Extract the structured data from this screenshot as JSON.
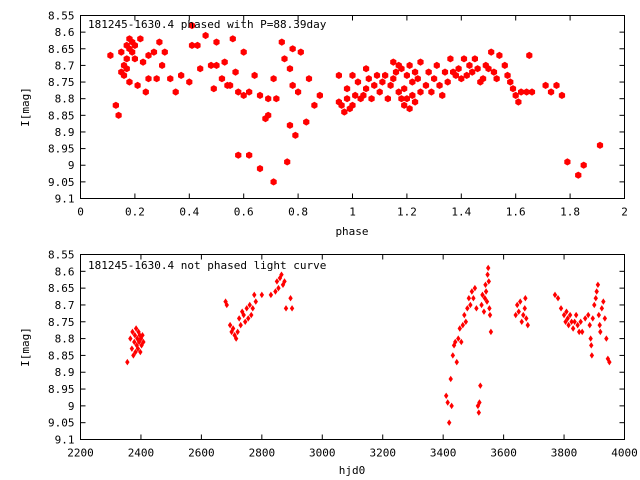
{
  "colors": {
    "points": "#ff0000",
    "axes": "#000000",
    "background": "#ffffff"
  },
  "chart_data": [
    {
      "type": "scatter",
      "title": "181245-1630.4 phased with P=88.39day",
      "xlabel": "phase",
      "ylabel": "I[mag]",
      "xlim": [
        0,
        2
      ],
      "ylim": [
        8.55,
        9.1
      ],
      "y_inverted": true,
      "grid": false,
      "marker": "hexagon",
      "x_ticks": [
        0,
        0.2,
        0.4,
        0.6,
        0.8,
        1,
        1.2,
        1.4,
        1.6,
        1.8,
        2
      ],
      "x_tick_labels": [
        "0",
        "0.2",
        "0.4",
        "0.6",
        "0.8",
        "1",
        "1.2",
        "1.4",
        "1.6",
        "1.8",
        "2"
      ],
      "y_ticks": [
        8.55,
        8.6,
        8.65,
        8.7,
        8.75,
        8.8,
        8.85,
        8.9,
        8.95,
        9,
        9.05,
        9.1
      ],
      "y_tick_labels": [
        "8.55",
        "8.6",
        "8.65",
        "8.7",
        "8.75",
        "8.8",
        "8.85",
        "8.9",
        "8.95",
        "9",
        "9.05",
        "9.1"
      ],
      "points": [
        [
          0.11,
          8.67
        ],
        [
          0.13,
          8.82
        ],
        [
          0.14,
          8.85
        ],
        [
          0.15,
          8.72
        ],
        [
          0.15,
          8.66
        ],
        [
          0.16,
          8.7
        ],
        [
          0.16,
          8.73
        ],
        [
          0.17,
          8.64
        ],
        [
          0.17,
          8.68
        ],
        [
          0.17,
          8.71
        ],
        [
          0.18,
          8.62
        ],
        [
          0.18,
          8.65
        ],
        [
          0.18,
          8.75
        ],
        [
          0.19,
          8.63
        ],
        [
          0.19,
          8.66
        ],
        [
          0.2,
          8.68
        ],
        [
          0.2,
          8.64
        ],
        [
          0.21,
          8.76
        ],
        [
          0.22,
          8.62
        ],
        [
          0.23,
          8.69
        ],
        [
          0.24,
          8.78
        ],
        [
          0.25,
          8.67
        ],
        [
          0.25,
          8.74
        ],
        [
          0.27,
          8.66
        ],
        [
          0.28,
          8.74
        ],
        [
          0.29,
          8.63
        ],
        [
          0.3,
          8.7
        ],
        [
          0.31,
          8.66
        ],
        [
          0.33,
          8.74
        ],
        [
          0.35,
          8.78
        ],
        [
          0.37,
          8.73
        ],
        [
          0.4,
          8.75
        ],
        [
          0.41,
          8.64
        ],
        [
          0.41,
          8.58
        ],
        [
          0.43,
          8.64
        ],
        [
          0.44,
          8.71
        ],
        [
          0.46,
          8.61
        ],
        [
          0.48,
          8.7
        ],
        [
          0.49,
          8.77
        ],
        [
          0.5,
          8.7
        ],
        [
          0.5,
          8.63
        ],
        [
          0.52,
          8.74
        ],
        [
          0.53,
          8.69
        ],
        [
          0.54,
          8.76
        ],
        [
          0.55,
          8.76
        ],
        [
          0.56,
          8.62
        ],
        [
          0.57,
          8.72
        ],
        [
          0.58,
          8.78
        ],
        [
          0.58,
          8.97
        ],
        [
          0.6,
          8.79
        ],
        [
          0.6,
          8.66
        ],
        [
          0.62,
          8.78
        ],
        [
          0.62,
          8.97
        ],
        [
          0.64,
          8.73
        ],
        [
          0.66,
          8.79
        ],
        [
          0.66,
          9.01
        ],
        [
          0.68,
          8.86
        ],
        [
          0.69,
          8.8
        ],
        [
          0.69,
          8.85
        ],
        [
          0.71,
          9.05
        ],
        [
          0.71,
          8.74
        ],
        [
          0.72,
          8.8
        ],
        [
          0.74,
          8.63
        ],
        [
          0.75,
          8.68
        ],
        [
          0.76,
          8.99
        ],
        [
          0.77,
          8.88
        ],
        [
          0.77,
          8.71
        ],
        [
          0.78,
          8.65
        ],
        [
          0.78,
          8.76
        ],
        [
          0.79,
          8.91
        ],
        [
          0.8,
          8.78
        ],
        [
          0.81,
          8.66
        ],
        [
          0.83,
          8.87
        ],
        [
          0.84,
          8.74
        ],
        [
          0.86,
          8.82
        ],
        [
          0.88,
          8.79
        ],
        [
          0.95,
          8.73
        ],
        [
          0.95,
          8.81
        ],
        [
          0.96,
          8.82
        ],
        [
          0.97,
          8.84
        ],
        [
          0.98,
          8.77
        ],
        [
          0.98,
          8.8
        ],
        [
          0.99,
          8.83
        ],
        [
          1.0,
          8.82
        ],
        [
          1.0,
          8.73
        ],
        [
          1.01,
          8.79
        ],
        [
          1.02,
          8.75
        ],
        [
          1.03,
          8.8
        ],
        [
          1.04,
          8.79
        ],
        [
          1.05,
          8.77
        ],
        [
          1.05,
          8.71
        ],
        [
          1.06,
          8.74
        ],
        [
          1.07,
          8.8
        ],
        [
          1.08,
          8.76
        ],
        [
          1.09,
          8.73
        ],
        [
          1.1,
          8.78
        ],
        [
          1.11,
          8.75
        ],
        [
          1.12,
          8.73
        ],
        [
          1.13,
          8.8
        ],
        [
          1.14,
          8.76
        ],
        [
          1.15,
          8.69
        ],
        [
          1.15,
          8.74
        ],
        [
          1.16,
          8.72
        ],
        [
          1.17,
          8.7
        ],
        [
          1.17,
          8.78
        ],
        [
          1.18,
          8.8
        ],
        [
          1.18,
          8.71
        ],
        [
          1.19,
          8.82
        ],
        [
          1.19,
          8.77
        ],
        [
          1.2,
          8.8
        ],
        [
          1.2,
          8.73
        ],
        [
          1.21,
          8.83
        ],
        [
          1.21,
          8.7
        ],
        [
          1.22,
          8.79
        ],
        [
          1.22,
          8.75
        ],
        [
          1.23,
          8.81
        ],
        [
          1.23,
          8.72
        ],
        [
          1.24,
          8.74
        ],
        [
          1.25,
          8.69
        ],
        [
          1.25,
          8.78
        ],
        [
          1.27,
          8.76
        ],
        [
          1.28,
          8.72
        ],
        [
          1.29,
          8.78
        ],
        [
          1.3,
          8.74
        ],
        [
          1.31,
          8.7
        ],
        [
          1.32,
          8.76
        ],
        [
          1.33,
          8.79
        ],
        [
          1.34,
          8.72
        ],
        [
          1.35,
          8.75
        ],
        [
          1.36,
          8.68
        ],
        [
          1.37,
          8.72
        ],
        [
          1.38,
          8.73
        ],
        [
          1.39,
          8.71
        ],
        [
          1.4,
          8.74
        ],
        [
          1.41,
          8.68
        ],
        [
          1.42,
          8.73
        ],
        [
          1.43,
          8.7
        ],
        [
          1.44,
          8.72
        ],
        [
          1.45,
          8.68
        ],
        [
          1.46,
          8.71
        ],
        [
          1.47,
          8.75
        ],
        [
          1.48,
          8.74
        ],
        [
          1.49,
          8.7
        ],
        [
          1.5,
          8.71
        ],
        [
          1.51,
          8.66
        ],
        [
          1.52,
          8.72
        ],
        [
          1.53,
          8.74
        ],
        [
          1.54,
          8.67
        ],
        [
          1.56,
          8.7
        ],
        [
          1.57,
          8.73
        ],
        [
          1.58,
          8.75
        ],
        [
          1.59,
          8.77
        ],
        [
          1.6,
          8.79
        ],
        [
          1.61,
          8.81
        ],
        [
          1.62,
          8.78
        ],
        [
          1.64,
          8.78
        ],
        [
          1.65,
          8.67
        ],
        [
          1.66,
          8.78
        ],
        [
          1.71,
          8.76
        ],
        [
          1.73,
          8.78
        ],
        [
          1.75,
          8.76
        ],
        [
          1.77,
          8.79
        ],
        [
          1.79,
          8.99
        ],
        [
          1.83,
          9.03
        ],
        [
          1.85,
          9.0
        ],
        [
          1.91,
          8.94
        ]
      ]
    },
    {
      "type": "scatter",
      "title": "181245-1630.4 not phased light curve",
      "xlabel": "hjd0",
      "ylabel": "I[mag]",
      "xlim": [
        2200,
        4000
      ],
      "ylim": [
        8.55,
        9.1
      ],
      "y_inverted": true,
      "grid": false,
      "marker": "diamond",
      "x_ticks": [
        2200,
        2400,
        2600,
        2800,
        3000,
        3200,
        3400,
        3600,
        3800,
        4000
      ],
      "x_tick_labels": [
        "2200",
        "2400",
        "2600",
        "2800",
        "3000",
        "3200",
        "3400",
        "3600",
        "3800",
        "4000"
      ],
      "y_ticks": [
        8.55,
        8.6,
        8.65,
        8.7,
        8.75,
        8.8,
        8.85,
        8.9,
        8.95,
        9,
        9.05,
        9.1
      ],
      "y_tick_labels": [
        "8.55",
        "8.6",
        "8.65",
        "8.7",
        "8.75",
        "8.8",
        "8.85",
        "8.9",
        "8.95",
        "9",
        "9.05",
        "9.1"
      ],
      "points": [
        [
          2355,
          8.87
        ],
        [
          2365,
          8.8
        ],
        [
          2370,
          8.83
        ],
        [
          2372,
          8.78
        ],
        [
          2375,
          8.85
        ],
        [
          2378,
          8.81
        ],
        [
          2380,
          8.79
        ],
        [
          2382,
          8.84
        ],
        [
          2384,
          8.77
        ],
        [
          2386,
          8.82
        ],
        [
          2388,
          8.8
        ],
        [
          2390,
          8.83
        ],
        [
          2392,
          8.78
        ],
        [
          2394,
          8.81
        ],
        [
          2396,
          8.79
        ],
        [
          2398,
          8.84
        ],
        [
          2400,
          8.8
        ],
        [
          2402,
          8.82
        ],
        [
          2405,
          8.79
        ],
        [
          2408,
          8.81
        ],
        [
          2680,
          8.69
        ],
        [
          2684,
          8.7
        ],
        [
          2695,
          8.76
        ],
        [
          2700,
          8.78
        ],
        [
          2705,
          8.77
        ],
        [
          2710,
          8.79
        ],
        [
          2715,
          8.8
        ],
        [
          2720,
          8.78
        ],
        [
          2725,
          8.74
        ],
        [
          2730,
          8.76
        ],
        [
          2735,
          8.72
        ],
        [
          2740,
          8.73
        ],
        [
          2745,
          8.75
        ],
        [
          2750,
          8.71
        ],
        [
          2755,
          8.74
        ],
        [
          2760,
          8.7
        ],
        [
          2765,
          8.73
        ],
        [
          2770,
          8.71
        ],
        [
          2775,
          8.67
        ],
        [
          2780,
          8.69
        ],
        [
          2800,
          8.67
        ],
        [
          2830,
          8.67
        ],
        [
          2845,
          8.66
        ],
        [
          2850,
          8.63
        ],
        [
          2855,
          8.65
        ],
        [
          2860,
          8.62
        ],
        [
          2865,
          8.61
        ],
        [
          2870,
          8.64
        ],
        [
          2875,
          8.63
        ],
        [
          2880,
          8.71
        ],
        [
          2895,
          8.68
        ],
        [
          2900,
          8.71
        ],
        [
          3410,
          8.97
        ],
        [
          3415,
          8.99
        ],
        [
          3420,
          9.05
        ],
        [
          3425,
          8.92
        ],
        [
          3428,
          9.0
        ],
        [
          3432,
          8.85
        ],
        [
          3436,
          8.82
        ],
        [
          3440,
          8.81
        ],
        [
          3445,
          8.87
        ],
        [
          3450,
          8.8
        ],
        [
          3455,
          8.77
        ],
        [
          3460,
          8.81
        ],
        [
          3465,
          8.76
        ],
        [
          3470,
          8.73
        ],
        [
          3475,
          8.75
        ],
        [
          3480,
          8.71
        ],
        [
          3485,
          8.68
        ],
        [
          3490,
          8.7
        ],
        [
          3495,
          8.66
        ],
        [
          3500,
          8.68
        ],
        [
          3505,
          8.65
        ],
        [
          3510,
          8.71
        ],
        [
          3515,
          9.0
        ],
        [
          3518,
          9.02
        ],
        [
          3520,
          8.99
        ],
        [
          3523,
          8.94
        ],
        [
          3527,
          8.7
        ],
        [
          3530,
          8.67
        ],
        [
          3535,
          8.72
        ],
        [
          3538,
          8.68
        ],
        [
          3540,
          8.64
        ],
        [
          3542,
          8.66
        ],
        [
          3545,
          8.69
        ],
        [
          3547,
          8.61
        ],
        [
          3549,
          8.59
        ],
        [
          3551,
          8.63
        ],
        [
          3553,
          8.71
        ],
        [
          3555,
          8.73
        ],
        [
          3558,
          8.78
        ],
        [
          3640,
          8.73
        ],
        [
          3645,
          8.7
        ],
        [
          3650,
          8.72
        ],
        [
          3655,
          8.69
        ],
        [
          3660,
          8.75
        ],
        [
          3665,
          8.73
        ],
        [
          3670,
          8.71
        ],
        [
          3672,
          8.68
        ],
        [
          3675,
          8.74
        ],
        [
          3680,
          8.76
        ],
        [
          3770,
          8.67
        ],
        [
          3780,
          8.68
        ],
        [
          3790,
          8.71
        ],
        [
          3800,
          8.73
        ],
        [
          3805,
          8.75
        ],
        [
          3808,
          8.72
        ],
        [
          3812,
          8.74
        ],
        [
          3815,
          8.76
        ],
        [
          3820,
          8.73
        ],
        [
          3825,
          8.75
        ],
        [
          3830,
          8.77
        ],
        [
          3835,
          8.75
        ],
        [
          3840,
          8.73
        ],
        [
          3845,
          8.76
        ],
        [
          3850,
          8.78
        ],
        [
          3855,
          8.75
        ],
        [
          3860,
          8.78
        ],
        [
          3870,
          8.74
        ],
        [
          3880,
          8.73
        ],
        [
          3885,
          8.76
        ],
        [
          3888,
          8.8
        ],
        [
          3890,
          8.82
        ],
        [
          3892,
          8.85
        ],
        [
          3895,
          8.74
        ],
        [
          3900,
          8.7
        ],
        [
          3905,
          8.68
        ],
        [
          3908,
          8.66
        ],
        [
          3912,
          8.64
        ],
        [
          3915,
          8.73
        ],
        [
          3918,
          8.76
        ],
        [
          3920,
          8.78
        ],
        [
          3925,
          8.71
        ],
        [
          3930,
          8.69
        ],
        [
          3935,
          8.74
        ],
        [
          3940,
          8.8
        ],
        [
          3945,
          8.86
        ],
        [
          3950,
          8.87
        ]
      ]
    }
  ]
}
